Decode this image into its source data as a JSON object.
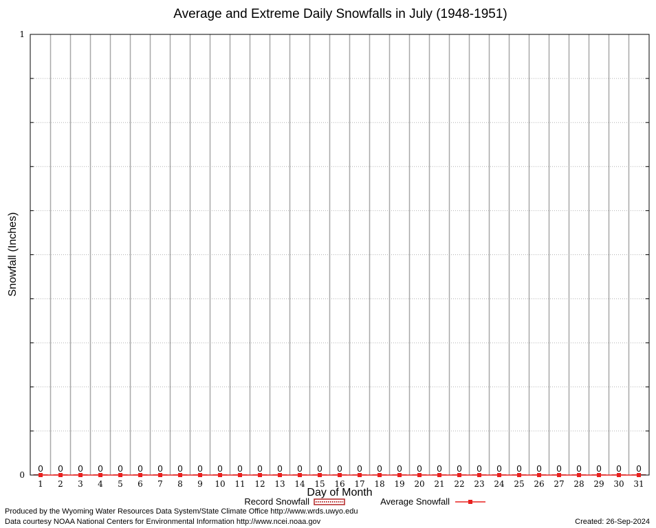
{
  "chart_data": {
    "type": "bar",
    "title": "Average and Extreme Daily Snowfalls in July (1948-1951)",
    "xlabel": "Day of Month",
    "ylabel": "Snowfall (Inches)",
    "ylim": [
      0,
      1
    ],
    "y_ticks": [
      "0",
      "1"
    ],
    "grid": true,
    "legend_position": "bottom",
    "categories": [
      "1",
      "2",
      "3",
      "4",
      "5",
      "6",
      "7",
      "8",
      "9",
      "10",
      "11",
      "12",
      "13",
      "14",
      "15",
      "16",
      "17",
      "18",
      "19",
      "20",
      "21",
      "22",
      "23",
      "24",
      "25",
      "26",
      "27",
      "28",
      "29",
      "30",
      "31"
    ],
    "series": [
      {
        "name": "Record Snowfall",
        "type": "bar",
        "color": "#b22222",
        "values": [
          0,
          0,
          0,
          0,
          0,
          0,
          0,
          0,
          0,
          0,
          0,
          0,
          0,
          0,
          0,
          0,
          0,
          0,
          0,
          0,
          0,
          0,
          0,
          0,
          0,
          0,
          0,
          0,
          0,
          0,
          0
        ]
      },
      {
        "name": "Average Snowfall",
        "type": "line",
        "color": "#e8201e",
        "values": [
          0,
          0,
          0,
          0,
          0,
          0,
          0,
          0,
          0,
          0,
          0,
          0,
          0,
          0,
          0,
          0,
          0,
          0,
          0,
          0,
          0,
          0,
          0,
          0,
          0,
          0,
          0,
          0,
          0,
          0,
          0
        ]
      }
    ],
    "data_labels": [
      "0",
      "0",
      "0",
      "0",
      "0",
      "0",
      "0",
      "0",
      "0",
      "0",
      "0",
      "0",
      "0",
      "0",
      "0",
      "0",
      "0",
      "0",
      "0",
      "0",
      "0",
      "0",
      "0",
      "0",
      "0",
      "0",
      "0",
      "0",
      "0",
      "0",
      "0"
    ]
  },
  "footer": {
    "produced_by": "Produced by the Wyoming Water Resources Data System/State Climate Office http://www.wrds.uwyo.edu",
    "courtesy": "Data courtesy NOAA National Centers for Environmental Information http://www.ncei.noaa.gov",
    "created": "Created:  26-Sep-2024"
  }
}
